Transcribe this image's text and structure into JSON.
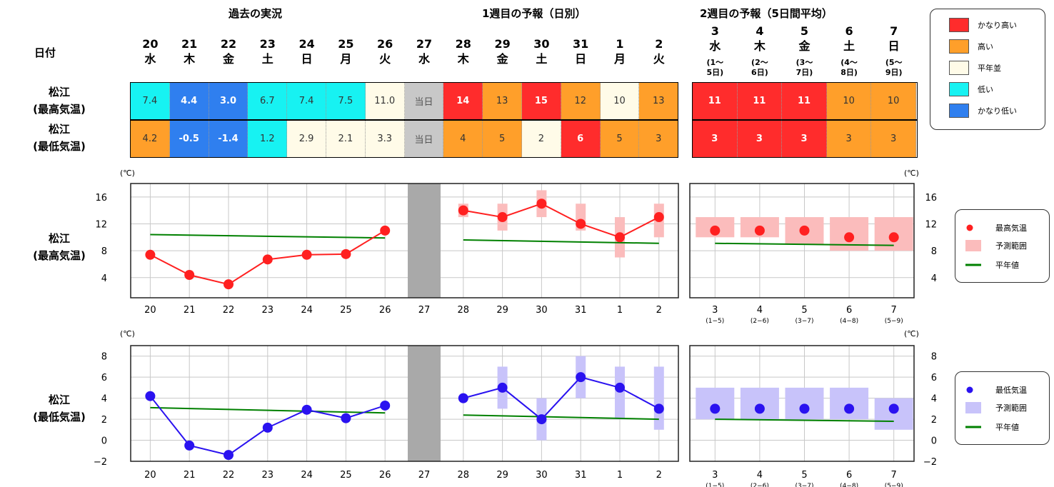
{
  "headers": {
    "past": "過去の実況",
    "week1": "1週目の予報（日別）",
    "week2": "2週目の予報（5日間平均）",
    "date_label": "日付"
  },
  "dates": [
    {
      "d": "20",
      "w": "水"
    },
    {
      "d": "21",
      "w": "木"
    },
    {
      "d": "22",
      "w": "金"
    },
    {
      "d": "23",
      "w": "土"
    },
    {
      "d": "24",
      "w": "日"
    },
    {
      "d": "25",
      "w": "月"
    },
    {
      "d": "26",
      "w": "火"
    },
    {
      "d": "27",
      "w": "水"
    },
    {
      "d": "28",
      "w": "木"
    },
    {
      "d": "29",
      "w": "金"
    },
    {
      "d": "30",
      "w": "土"
    },
    {
      "d": "31",
      "w": "日"
    },
    {
      "d": "1",
      "w": "月"
    },
    {
      "d": "2",
      "w": "火"
    }
  ],
  "week2_dates": [
    {
      "d": "3",
      "w": "水",
      "r1": "(1〜",
      "r2": "5日)"
    },
    {
      "d": "4",
      "w": "木",
      "r1": "(2〜",
      "r2": "6日)"
    },
    {
      "d": "5",
      "w": "金",
      "r1": "(3〜",
      "r2": "7日)"
    },
    {
      "d": "6",
      "w": "土",
      "r1": "(4〜",
      "r2": "8日)"
    },
    {
      "d": "7",
      "w": "日",
      "r1": "(5〜",
      "r2": "9日)"
    }
  ],
  "table_rows": [
    {
      "label1": "松江",
      "label2": "(最高気温)",
      "cells": [
        "7.4",
        "4.4",
        "3.0",
        "6.7",
        "7.4",
        "7.5",
        "11.0",
        "当日",
        "14",
        "13",
        "15",
        "12",
        "10",
        "13"
      ],
      "cats": [
        "low",
        "vlow",
        "vlow",
        "low",
        "low",
        "low",
        "normal",
        "today",
        "vhigh",
        "high",
        "vhigh",
        "high",
        "normal",
        "high"
      ],
      "w2cells": [
        "11",
        "11",
        "11",
        "10",
        "10"
      ],
      "w2cats": [
        "vhigh",
        "vhigh",
        "vhigh",
        "high",
        "high"
      ]
    },
    {
      "label1": "松江",
      "label2": "(最低気温)",
      "cells": [
        "4.2",
        "-0.5",
        "-1.4",
        "1.2",
        "2.9",
        "2.1",
        "3.3",
        "当日",
        "4",
        "5",
        "2",
        "6",
        "5",
        "3"
      ],
      "cats": [
        "high",
        "vlow",
        "vlow",
        "low",
        "normal",
        "normal",
        "normal",
        "today",
        "high",
        "high",
        "normal",
        "vhigh",
        "high",
        "high"
      ],
      "w2cells": [
        "3",
        "3",
        "3",
        "3",
        "3"
      ],
      "w2cats": [
        "vhigh",
        "vhigh",
        "vhigh",
        "high",
        "high"
      ]
    }
  ],
  "category_colors": {
    "vhigh": "#ff2c2c",
    "high": "#ff9f2a",
    "normal": "#fffbe8",
    "low": "#17f2f2",
    "vlow": "#2f7fef",
    "today": "#c8c8c8"
  },
  "legend_categories": [
    {
      "key": "vhigh",
      "label": "かなり高い"
    },
    {
      "key": "high",
      "label": "高い"
    },
    {
      "key": "normal",
      "label": "平年並"
    },
    {
      "key": "low",
      "label": "低い"
    },
    {
      "key": "vlow",
      "label": "かなり低い"
    }
  ],
  "unit": "(℃)",
  "chart_data": [
    {
      "type": "line",
      "label1": "松江",
      "label2": "(最高気温)",
      "ylim": [
        1,
        18
      ],
      "yticks": [
        "4",
        "8",
        "12",
        "16"
      ],
      "ytick_values": [
        4,
        8,
        12,
        16
      ],
      "categories": [
        "20",
        "21",
        "22",
        "23",
        "24",
        "25",
        "26",
        "27",
        "28",
        "29",
        "30",
        "31",
        "1",
        "2"
      ],
      "observed": [
        7.4,
        4.4,
        3.0,
        6.7,
        7.4,
        7.5,
        11.0
      ],
      "forecast": [
        14,
        13,
        15,
        12,
        10,
        13
      ],
      "forecast_range": [
        [
          13,
          15
        ],
        [
          11,
          15
        ],
        [
          13,
          17
        ],
        [
          11,
          15
        ],
        [
          7,
          13
        ],
        [
          10,
          15
        ]
      ],
      "normal_past": [
        10.4,
        9.9
      ],
      "normal_week1": [
        9.6,
        9.1
      ],
      "week2_categories": [
        "3",
        "4",
        "5",
        "6",
        "7"
      ],
      "week2_sub": [
        "(1−5)",
        "(2−6)",
        "(3−7)",
        "(4−8)",
        "(5−9)"
      ],
      "week2_values": [
        11,
        11,
        11,
        10,
        10
      ],
      "week2_range": [
        [
          10,
          13
        ],
        [
          10,
          13
        ],
        [
          9,
          13
        ],
        [
          8,
          13
        ],
        [
          8,
          13
        ]
      ],
      "normal_week2": [
        9.1,
        8.8
      ],
      "color": "#ff2020",
      "range_color": "#fbbcbc",
      "normal_color": "#008000",
      "legend": {
        "point": "最高気温",
        "range": "予測範囲",
        "normal": "平年値"
      }
    },
    {
      "type": "line",
      "label1": "松江",
      "label2": "(最低気温)",
      "ylim": [
        -2,
        9
      ],
      "yticks": [
        "−2",
        "0",
        "2",
        "4",
        "6",
        "8"
      ],
      "ytick_values": [
        -2,
        0,
        2,
        4,
        6,
        8
      ],
      "categories": [
        "20",
        "21",
        "22",
        "23",
        "24",
        "25",
        "26",
        "27",
        "28",
        "29",
        "30",
        "31",
        "1",
        "2"
      ],
      "observed": [
        4.2,
        -0.5,
        -1.4,
        1.2,
        2.9,
        2.1,
        3.3
      ],
      "forecast": [
        4,
        5,
        2,
        6,
        5,
        3
      ],
      "forecast_range": [
        [
          4,
          4
        ],
        [
          3,
          7
        ],
        [
          0,
          4
        ],
        [
          4,
          8
        ],
        [
          2,
          7
        ],
        [
          1,
          7
        ]
      ],
      "normal_past": [
        3.1,
        2.6
      ],
      "normal_week1": [
        2.4,
        2.0
      ],
      "week2_categories": [
        "3",
        "4",
        "5",
        "6",
        "7"
      ],
      "week2_sub": [
        "(1−5)",
        "(2−6)",
        "(3−7)",
        "(4−8)",
        "(5−9)"
      ],
      "week2_values": [
        3,
        3,
        3,
        3,
        3
      ],
      "week2_range": [
        [
          2,
          5
        ],
        [
          2,
          5
        ],
        [
          2,
          5
        ],
        [
          2,
          5
        ],
        [
          1,
          4
        ]
      ],
      "normal_week2": [
        2.0,
        1.8
      ],
      "color": "#2a12f0",
      "range_color": "#c8c3fa",
      "normal_color": "#008000",
      "legend": {
        "point": "最低気温",
        "range": "予測範囲",
        "normal": "平年値"
      }
    }
  ]
}
